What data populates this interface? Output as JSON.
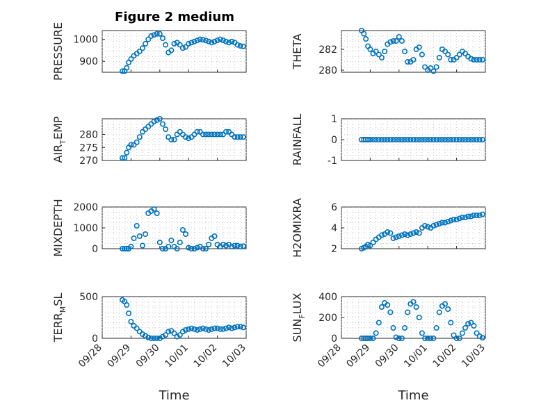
{
  "figure": {
    "title": "Figure 2 medium"
  },
  "chart_data": [
    {
      "type": "scatter",
      "id": "pressure",
      "ylabel": "PRESSURE",
      "title": "Figure 2 medium",
      "xlabel": "",
      "xticks": [
        "09/28",
        "09/29",
        "09/30",
        "10/01",
        "10/02",
        "10/03"
      ],
      "xlim": [
        0,
        5
      ],
      "ylim": [
        850,
        1040
      ],
      "yticks": [
        900,
        1000
      ],
      "ytick_labels": [
        "900",
        "1000"
      ],
      "x": [
        0.7,
        0.78,
        0.85,
        0.92,
        1.0,
        1.1,
        1.2,
        1.3,
        1.4,
        1.5,
        1.6,
        1.7,
        1.8,
        1.9,
        2.0,
        2.1,
        2.2,
        2.3,
        2.4,
        2.5,
        2.6,
        2.7,
        2.8,
        2.9,
        3.0,
        3.1,
        3.2,
        3.3,
        3.4,
        3.5,
        3.6,
        3.7,
        3.8,
        3.9,
        4.0,
        4.1,
        4.2,
        4.3,
        4.4,
        4.5,
        4.6,
        4.7,
        4.8,
        4.9
      ],
      "y": [
        855,
        855,
        870,
        895,
        910,
        925,
        935,
        945,
        960,
        980,
        1000,
        1015,
        1020,
        1025,
        1025,
        1005,
        975,
        940,
        950,
        980,
        985,
        975,
        960,
        965,
        980,
        985,
        990,
        995,
        1000,
        998,
        995,
        990,
        985,
        990,
        995,
        1000,
        995,
        990,
        985,
        990,
        985,
        975,
        970,
        968
      ]
    },
    {
      "type": "scatter",
      "id": "theta",
      "ylabel": "THETA",
      "title": "",
      "xlabel": "",
      "xticks": [
        "09/28",
        "09/29",
        "09/30",
        "10/01",
        "10/02",
        "10/03"
      ],
      "xlim": [
        0,
        5
      ],
      "ylim": [
        279.8,
        283.8
      ],
      "yticks": [
        280,
        282
      ],
      "ytick_labels": [
        "280",
        "282"
      ],
      "x": [
        0.7,
        0.78,
        0.85,
        0.92,
        1.0,
        1.1,
        1.2,
        1.3,
        1.4,
        1.5,
        1.6,
        1.7,
        1.8,
        1.9,
        2.0,
        2.1,
        2.2,
        2.3,
        2.4,
        2.5,
        2.6,
        2.7,
        2.8,
        2.9,
        3.0,
        3.1,
        3.2,
        3.3,
        3.4,
        3.5,
        3.6,
        3.7,
        3.8,
        3.9,
        4.0,
        4.1,
        4.2,
        4.3,
        4.4,
        4.5,
        4.6,
        4.7,
        4.8,
        4.9
      ],
      "y": [
        283.8,
        283.5,
        283.0,
        282.3,
        282.0,
        281.6,
        281.8,
        281.5,
        281.2,
        281.8,
        282.5,
        282.7,
        282.8,
        282.8,
        283.2,
        282.8,
        281.8,
        280.8,
        280.8,
        281.0,
        282.0,
        282.2,
        281.5,
        280.3,
        280.0,
        280.2,
        279.9,
        280.3,
        281.2,
        282.0,
        281.8,
        281.5,
        281.0,
        281.0,
        281.2,
        281.5,
        281.8,
        281.6,
        281.3,
        281.1,
        281.0,
        281.0,
        281.0,
        281.0
      ]
    },
    {
      "type": "scatter",
      "id": "air_temp",
      "ylabel": "AIR_TEMP",
      "title": "",
      "xlabel": "",
      "xticks": [
        "09/28",
        "09/29",
        "09/30",
        "10/01",
        "10/02",
        "10/03"
      ],
      "xlim": [
        0,
        5
      ],
      "ylim": [
        270,
        286
      ],
      "yticks": [
        270,
        275,
        280
      ],
      "ytick_labels": [
        "270",
        "275",
        "280"
      ],
      "x": [
        0.7,
        0.78,
        0.85,
        0.92,
        1.0,
        1.1,
        1.2,
        1.3,
        1.4,
        1.5,
        1.6,
        1.7,
        1.8,
        1.9,
        2.0,
        2.1,
        2.2,
        2.3,
        2.4,
        2.5,
        2.6,
        2.7,
        2.8,
        2.9,
        3.0,
        3.1,
        3.2,
        3.3,
        3.4,
        3.5,
        3.6,
        3.7,
        3.8,
        3.9,
        4.0,
        4.1,
        4.2,
        4.3,
        4.4,
        4.5,
        4.6,
        4.7,
        4.8,
        4.9
      ],
      "y": [
        271,
        271,
        273,
        275,
        276,
        276,
        277,
        279,
        281,
        282,
        283,
        284,
        285,
        285.5,
        286,
        284,
        282,
        279,
        278,
        278,
        280,
        281,
        280,
        279,
        278.5,
        279,
        280,
        281,
        281,
        280,
        280,
        280,
        280,
        280,
        280,
        280,
        280,
        281,
        281,
        280,
        279,
        279,
        279,
        279
      ]
    },
    {
      "type": "scatter",
      "id": "rainfall",
      "ylabel": "RAINFALL",
      "title": "",
      "xlabel": "",
      "xticks": [
        "09/28",
        "09/29",
        "09/30",
        "10/01",
        "10/02",
        "10/03"
      ],
      "xlim": [
        0,
        5
      ],
      "ylim": [
        -1,
        1
      ],
      "yticks": [
        -1,
        0,
        1
      ],
      "ytick_labels": [
        "-1",
        "0",
        "1"
      ],
      "x": [
        0.7,
        0.78,
        0.85,
        0.92,
        1.0,
        1.1,
        1.2,
        1.3,
        1.4,
        1.5,
        1.6,
        1.7,
        1.8,
        1.9,
        2.0,
        2.1,
        2.2,
        2.3,
        2.4,
        2.5,
        2.6,
        2.7,
        2.8,
        2.9,
        3.0,
        3.1,
        3.2,
        3.3,
        3.4,
        3.5,
        3.6,
        3.7,
        3.8,
        3.9,
        4.0,
        4.1,
        4.2,
        4.3,
        4.4,
        4.5,
        4.6,
        4.7,
        4.8,
        4.9
      ],
      "y": [
        0,
        0,
        0,
        0,
        0,
        0,
        0,
        0,
        0,
        0,
        0,
        0,
        0,
        0,
        0,
        0,
        0,
        0,
        0,
        0,
        0,
        0,
        0,
        0,
        0,
        0,
        0,
        0,
        0,
        0,
        0,
        0,
        0,
        0,
        0,
        0,
        0,
        0,
        0,
        0,
        0,
        0,
        0,
        0
      ]
    },
    {
      "type": "scatter",
      "id": "mixdepth",
      "ylabel": "MIXDEPTH",
      "title": "",
      "xlabel": "",
      "xticks": [
        "09/28",
        "09/29",
        "09/30",
        "10/01",
        "10/02",
        "10/03"
      ],
      "xlim": [
        0,
        5
      ],
      "ylim": [
        0,
        2000
      ],
      "yticks": [
        0,
        1000,
        2000
      ],
      "ytick_labels": [
        "0",
        "1000",
        "2000"
      ],
      "x": [
        0.7,
        0.78,
        0.85,
        0.92,
        1.0,
        1.1,
        1.2,
        1.3,
        1.4,
        1.5,
        1.6,
        1.7,
        1.8,
        1.9,
        2.0,
        2.1,
        2.2,
        2.3,
        2.4,
        2.5,
        2.6,
        2.7,
        2.8,
        2.9,
        3.0,
        3.1,
        3.2,
        3.3,
        3.4,
        3.5,
        3.6,
        3.7,
        3.8,
        3.9,
        4.0,
        4.1,
        4.2,
        4.3,
        4.4,
        4.5,
        4.6,
        4.7,
        4.8,
        4.9
      ],
      "y": [
        0,
        0,
        0,
        0,
        100,
        500,
        1100,
        600,
        150,
        700,
        1700,
        1800,
        1900,
        1700,
        300,
        0,
        0,
        100,
        400,
        100,
        0,
        300,
        900,
        700,
        50,
        0,
        0,
        50,
        100,
        0,
        0,
        200,
        500,
        600,
        200,
        100,
        200,
        150,
        200,
        100,
        150,
        150,
        100,
        120
      ]
    },
    {
      "type": "scatter",
      "id": "h2omixra",
      "ylabel": "H2OMIXRA",
      "title": "",
      "xlabel": "",
      "xticks": [
        "09/28",
        "09/29",
        "09/30",
        "10/01",
        "10/02",
        "10/03"
      ],
      "xlim": [
        0,
        5
      ],
      "ylim": [
        2,
        6
      ],
      "yticks": [
        2,
        4,
        6
      ],
      "ytick_labels": [
        "2",
        "4",
        "6"
      ],
      "x": [
        0.7,
        0.78,
        0.85,
        0.92,
        1.0,
        1.1,
        1.2,
        1.3,
        1.4,
        1.5,
        1.6,
        1.7,
        1.8,
        1.9,
        2.0,
        2.1,
        2.2,
        2.3,
        2.4,
        2.5,
        2.6,
        2.7,
        2.8,
        2.9,
        3.0,
        3.1,
        3.2,
        3.3,
        3.4,
        3.5,
        3.6,
        3.7,
        3.8,
        3.9,
        4.0,
        4.1,
        4.2,
        4.3,
        4.4,
        4.5,
        4.6,
        4.7,
        4.8,
        4.9
      ],
      "y": [
        2.0,
        2.1,
        2.2,
        2.4,
        2.3,
        2.6,
        2.9,
        3.1,
        3.3,
        3.4,
        3.6,
        3.5,
        3.0,
        3.1,
        3.2,
        3.3,
        3.4,
        3.3,
        3.4,
        3.5,
        3.6,
        3.5,
        4.0,
        4.2,
        4.1,
        4.0,
        4.2,
        4.3,
        4.4,
        4.5,
        4.5,
        4.6,
        4.7,
        4.8,
        4.8,
        4.9,
        5.0,
        5.0,
        5.1,
        5.1,
        5.2,
        5.2,
        5.2,
        5.3
      ]
    },
    {
      "type": "scatter",
      "id": "terr_msl",
      "ylabel": "TERR_MSL",
      "title": "",
      "xlabel": "Time",
      "xticks": [
        "09/28",
        "09/29",
        "09/30",
        "10/01",
        "10/02",
        "10/03"
      ],
      "xlim": [
        0,
        5
      ],
      "ylim": [
        0,
        500
      ],
      "yticks": [
        0,
        500
      ],
      "ytick_labels": [
        "0",
        "500"
      ],
      "x": [
        0.7,
        0.78,
        0.85,
        0.92,
        1.0,
        1.1,
        1.2,
        1.3,
        1.4,
        1.5,
        1.6,
        1.7,
        1.8,
        1.9,
        2.0,
        2.1,
        2.2,
        2.3,
        2.4,
        2.5,
        2.6,
        2.7,
        2.8,
        2.9,
        3.0,
        3.1,
        3.2,
        3.3,
        3.4,
        3.5,
        3.6,
        3.7,
        3.8,
        3.9,
        4.0,
        4.1,
        4.2,
        4.3,
        4.4,
        4.5,
        4.6,
        4.7,
        4.8,
        4.9
      ],
      "y": [
        460,
        440,
        400,
        300,
        200,
        150,
        120,
        80,
        50,
        30,
        10,
        0,
        0,
        0,
        0,
        20,
        40,
        80,
        90,
        60,
        20,
        40,
        80,
        100,
        110,
        120,
        110,
        100,
        110,
        120,
        110,
        100,
        110,
        120,
        120,
        110,
        110,
        120,
        130,
        120,
        130,
        140,
        140,
        130
      ]
    },
    {
      "type": "scatter",
      "id": "sun_flux",
      "ylabel": "SUN_FLUX",
      "title": "",
      "xlabel": "Time",
      "xticks": [
        "09/28",
        "09/29",
        "09/30",
        "10/01",
        "10/02",
        "10/03"
      ],
      "xlim": [
        0,
        5
      ],
      "ylim": [
        0,
        400
      ],
      "yticks": [
        0,
        200,
        400
      ],
      "ytick_labels": [
        "0",
        "200",
        "400"
      ],
      "x": [
        0.7,
        0.78,
        0.85,
        0.92,
        1.0,
        1.1,
        1.2,
        1.3,
        1.4,
        1.5,
        1.6,
        1.7,
        1.8,
        1.9,
        2.0,
        2.1,
        2.2,
        2.3,
        2.4,
        2.5,
        2.6,
        2.7,
        2.8,
        2.9,
        3.0,
        3.1,
        3.2,
        3.3,
        3.4,
        3.5,
        3.6,
        3.7,
        3.8,
        3.9,
        4.0,
        4.1,
        4.2,
        4.3,
        4.4,
        4.5,
        4.6,
        4.7,
        4.8,
        4.9
      ],
      "y": [
        0,
        0,
        0,
        0,
        0,
        0,
        50,
        150,
        300,
        340,
        320,
        250,
        100,
        10,
        0,
        0,
        100,
        250,
        330,
        350,
        300,
        200,
        50,
        0,
        0,
        0,
        0,
        100,
        250,
        310,
        330,
        280,
        150,
        30,
        0,
        0,
        50,
        100,
        140,
        150,
        120,
        50,
        20,
        5
      ]
    }
  ]
}
